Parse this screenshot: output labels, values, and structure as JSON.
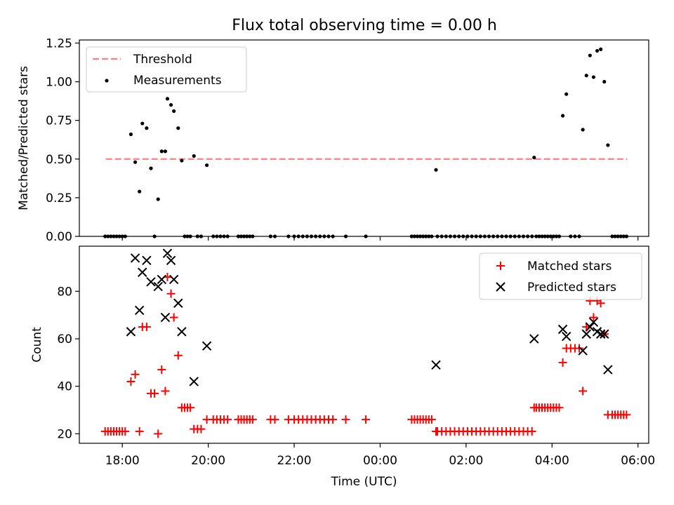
{
  "title": "Flux total observing time = 0.00 h",
  "chart_data": [
    {
      "type": "scatter",
      "ylabel": "Matched/Predicted stars",
      "xlabel": "",
      "xlim": [
        "17:00",
        "06:15"
      ],
      "ylim": [
        0,
        1.27
      ],
      "yticks": [
        "0.00",
        "0.25",
        "0.50",
        "0.75",
        "1.00",
        "1.25"
      ],
      "threshold": {
        "name": "Threshold",
        "value": 0.5,
        "x_start": "17:37",
        "x_end": "05:45",
        "color": "#ff7f7f"
      },
      "series": [
        {
          "name": "Measurements",
          "color": "#000000",
          "points": [
            [
              "17:36",
              0
            ],
            [
              "17:40",
              0
            ],
            [
              "17:44",
              0
            ],
            [
              "17:48",
              0
            ],
            [
              "17:52",
              0
            ],
            [
              "17:56",
              0
            ],
            [
              "18:00",
              0
            ],
            [
              "18:04",
              0
            ],
            [
              "18:12",
              0.66
            ],
            [
              "18:18",
              0.48
            ],
            [
              "18:24",
              0.29
            ],
            [
              "18:28",
              0.73
            ],
            [
              "18:34",
              0.7
            ],
            [
              "18:40",
              0.44
            ],
            [
              "18:45",
              0
            ],
            [
              "18:50",
              0.24
            ],
            [
              "18:55",
              0.55
            ],
            [
              "19:00",
              0.55
            ],
            [
              "19:03",
              0.89
            ],
            [
              "19:08",
              0.85
            ],
            [
              "19:12",
              0.81
            ],
            [
              "19:18",
              0.7
            ],
            [
              "19:23",
              0.49
            ],
            [
              "19:27",
              0
            ],
            [
              "19:31",
              0
            ],
            [
              "19:35",
              0
            ],
            [
              "19:40",
              0.52
            ],
            [
              "19:45",
              0
            ],
            [
              "19:50",
              0
            ],
            [
              "19:58",
              0.46
            ],
            [
              "20:07",
              0
            ],
            [
              "20:12",
              0
            ],
            [
              "20:17",
              0
            ],
            [
              "20:22",
              0
            ],
            [
              "20:27",
              0
            ],
            [
              "20:42",
              0
            ],
            [
              "20:46",
              0
            ],
            [
              "20:50",
              0
            ],
            [
              "20:54",
              0
            ],
            [
              "20:58",
              0
            ],
            [
              "21:02",
              0
            ],
            [
              "21:27",
              0
            ],
            [
              "21:33",
              0
            ],
            [
              "21:52",
              0
            ],
            [
              "22:00",
              0
            ],
            [
              "22:06",
              0
            ],
            [
              "22:12",
              0
            ],
            [
              "22:18",
              0
            ],
            [
              "22:24",
              0
            ],
            [
              "22:30",
              0
            ],
            [
              "22:36",
              0
            ],
            [
              "22:42",
              0
            ],
            [
              "22:48",
              0
            ],
            [
              "22:54",
              0
            ],
            [
              "23:12",
              0
            ],
            [
              "23:40",
              0
            ],
            [
              "00:44",
              0
            ],
            [
              "00:48",
              0
            ],
            [
              "00:52",
              0
            ],
            [
              "00:56",
              0
            ],
            [
              "01:00",
              0
            ],
            [
              "01:04",
              0
            ],
            [
              "01:08",
              0
            ],
            [
              "01:12",
              0
            ],
            [
              "01:18",
              0.43
            ],
            [
              "01:20",
              0
            ],
            [
              "01:26",
              0
            ],
            [
              "01:32",
              0
            ],
            [
              "01:38",
              0
            ],
            [
              "01:44",
              0
            ],
            [
              "01:50",
              0
            ],
            [
              "01:56",
              0
            ],
            [
              "02:02",
              0
            ],
            [
              "02:08",
              0
            ],
            [
              "02:14",
              0
            ],
            [
              "02:20",
              0
            ],
            [
              "02:26",
              0
            ],
            [
              "02:32",
              0
            ],
            [
              "02:38",
              0
            ],
            [
              "02:44",
              0
            ],
            [
              "02:50",
              0
            ],
            [
              "02:56",
              0
            ],
            [
              "03:02",
              0
            ],
            [
              "03:08",
              0
            ],
            [
              "03:14",
              0
            ],
            [
              "03:20",
              0
            ],
            [
              "03:26",
              0
            ],
            [
              "03:32",
              0
            ],
            [
              "03:35",
              0.51
            ],
            [
              "03:38",
              0
            ],
            [
              "03:42",
              0
            ],
            [
              "03:46",
              0
            ],
            [
              "03:50",
              0
            ],
            [
              "03:54",
              0
            ],
            [
              "03:58",
              0
            ],
            [
              "04:02",
              0
            ],
            [
              "04:06",
              0
            ],
            [
              "04:10",
              0
            ],
            [
              "04:15",
              0.78
            ],
            [
              "04:20",
              0.92
            ],
            [
              "04:26",
              0
            ],
            [
              "04:32",
              0
            ],
            [
              "04:38",
              0
            ],
            [
              "04:43",
              0.69
            ],
            [
              "04:48",
              1.04
            ],
            [
              "04:53",
              1.17
            ],
            [
              "04:58",
              1.03
            ],
            [
              "05:03",
              1.2
            ],
            [
              "05:08",
              1.21
            ],
            [
              "05:13",
              1.0
            ],
            [
              "05:18",
              0.59
            ],
            [
              "05:24",
              0
            ],
            [
              "05:28",
              0
            ],
            [
              "05:32",
              0
            ],
            [
              "05:36",
              0
            ],
            [
              "05:40",
              0
            ],
            [
              "05:44",
              0
            ]
          ]
        }
      ],
      "legend": "top-left"
    },
    {
      "type": "scatter",
      "ylabel": "Count",
      "xlabel": "Time (UTC)",
      "xlim": [
        "17:00",
        "06:15"
      ],
      "ylim": [
        16,
        99
      ],
      "yticks": [
        "20",
        "40",
        "60",
        "80"
      ],
      "xticks": [
        "18:00",
        "20:00",
        "22:00",
        "00:00",
        "02:00",
        "04:00",
        "06:00"
      ],
      "series": [
        {
          "name": "Matched stars",
          "color": "#ff0000",
          "points": [
            [
              "17:36",
              21
            ],
            [
              "17:40",
              21
            ],
            [
              "17:44",
              21
            ],
            [
              "17:48",
              21
            ],
            [
              "17:52",
              21
            ],
            [
              "17:56",
              21
            ],
            [
              "18:00",
              21
            ],
            [
              "18:04",
              21
            ],
            [
              "18:12",
              42
            ],
            [
              "18:18",
              45
            ],
            [
              "18:24",
              21
            ],
            [
              "18:28",
              65
            ],
            [
              "18:34",
              65
            ],
            [
              "18:40",
              37
            ],
            [
              "18:45",
              37
            ],
            [
              "18:50",
              20
            ],
            [
              "18:55",
              47
            ],
            [
              "19:00",
              38
            ],
            [
              "19:03",
              86
            ],
            [
              "19:08",
              79
            ],
            [
              "19:12",
              69
            ],
            [
              "19:18",
              53
            ],
            [
              "19:23",
              31
            ],
            [
              "19:27",
              31
            ],
            [
              "19:31",
              31
            ],
            [
              "19:35",
              31
            ],
            [
              "19:40",
              22
            ],
            [
              "19:45",
              22
            ],
            [
              "19:50",
              22
            ],
            [
              "19:58",
              26
            ],
            [
              "20:07",
              26
            ],
            [
              "20:12",
              26
            ],
            [
              "20:17",
              26
            ],
            [
              "20:22",
              26
            ],
            [
              "20:27",
              26
            ],
            [
              "20:42",
              26
            ],
            [
              "20:46",
              26
            ],
            [
              "20:50",
              26
            ],
            [
              "20:54",
              26
            ],
            [
              "20:58",
              26
            ],
            [
              "21:02",
              26
            ],
            [
              "21:27",
              26
            ],
            [
              "21:33",
              26
            ],
            [
              "21:52",
              26
            ],
            [
              "22:00",
              26
            ],
            [
              "22:06",
              26
            ],
            [
              "22:12",
              26
            ],
            [
              "22:18",
              26
            ],
            [
              "22:24",
              26
            ],
            [
              "22:30",
              26
            ],
            [
              "22:36",
              26
            ],
            [
              "22:42",
              26
            ],
            [
              "22:48",
              26
            ],
            [
              "22:54",
              26
            ],
            [
              "23:12",
              26
            ],
            [
              "23:40",
              26
            ],
            [
              "00:44",
              26
            ],
            [
              "00:48",
              26
            ],
            [
              "00:52",
              26
            ],
            [
              "00:56",
              26
            ],
            [
              "01:00",
              26
            ],
            [
              "01:04",
              26
            ],
            [
              "01:08",
              26
            ],
            [
              "01:12",
              26
            ],
            [
              "01:18",
              21
            ],
            [
              "01:20",
              21
            ],
            [
              "01:26",
              21
            ],
            [
              "01:32",
              21
            ],
            [
              "01:38",
              21
            ],
            [
              "01:44",
              21
            ],
            [
              "01:50",
              21
            ],
            [
              "01:56",
              21
            ],
            [
              "02:02",
              21
            ],
            [
              "02:08",
              21
            ],
            [
              "02:14",
              21
            ],
            [
              "02:20",
              21
            ],
            [
              "02:26",
              21
            ],
            [
              "02:32",
              21
            ],
            [
              "02:38",
              21
            ],
            [
              "02:44",
              21
            ],
            [
              "02:50",
              21
            ],
            [
              "02:56",
              21
            ],
            [
              "03:02",
              21
            ],
            [
              "03:08",
              21
            ],
            [
              "03:14",
              21
            ],
            [
              "03:20",
              21
            ],
            [
              "03:26",
              21
            ],
            [
              "03:32",
              21
            ],
            [
              "03:35",
              31
            ],
            [
              "03:38",
              31
            ],
            [
              "03:42",
              31
            ],
            [
              "03:46",
              31
            ],
            [
              "03:50",
              31
            ],
            [
              "03:54",
              31
            ],
            [
              "03:58",
              31
            ],
            [
              "04:02",
              31
            ],
            [
              "04:06",
              31
            ],
            [
              "04:10",
              31
            ],
            [
              "04:15",
              50
            ],
            [
              "04:20",
              56
            ],
            [
              "04:26",
              56
            ],
            [
              "04:32",
              56
            ],
            [
              "04:38",
              56
            ],
            [
              "04:43",
              38
            ],
            [
              "04:48",
              65
            ],
            [
              "04:53",
              76
            ],
            [
              "04:58",
              69
            ],
            [
              "05:03",
              76
            ],
            [
              "05:08",
              75
            ],
            [
              "05:13",
              62
            ],
            [
              "05:18",
              28
            ],
            [
              "05:24",
              28
            ],
            [
              "05:28",
              28
            ],
            [
              "05:32",
              28
            ],
            [
              "05:36",
              28
            ],
            [
              "05:40",
              28
            ],
            [
              "05:44",
              28
            ]
          ]
        },
        {
          "name": "Predicted stars",
          "color": "#000000",
          "points": [
            [
              "18:12",
              63
            ],
            [
              "18:18",
              94
            ],
            [
              "18:24",
              72
            ],
            [
              "18:28",
              88
            ],
            [
              "18:34",
              93
            ],
            [
              "18:40",
              84
            ],
            [
              "18:50",
              82
            ],
            [
              "18:55",
              85
            ],
            [
              "19:00",
              69
            ],
            [
              "19:03",
              96
            ],
            [
              "19:08",
              93
            ],
            [
              "19:12",
              85
            ],
            [
              "19:18",
              75
            ],
            [
              "19:23",
              63
            ],
            [
              "19:40",
              42
            ],
            [
              "19:58",
              57
            ],
            [
              "01:18",
              49
            ],
            [
              "03:35",
              60
            ],
            [
              "04:15",
              64
            ],
            [
              "04:20",
              61
            ],
            [
              "04:43",
              55
            ],
            [
              "04:48",
              62
            ],
            [
              "04:53",
              65
            ],
            [
              "04:58",
              67
            ],
            [
              "05:03",
              63
            ],
            [
              "05:08",
              62
            ],
            [
              "05:13",
              62
            ],
            [
              "05:18",
              47
            ]
          ]
        }
      ],
      "legend": "top-right"
    }
  ]
}
